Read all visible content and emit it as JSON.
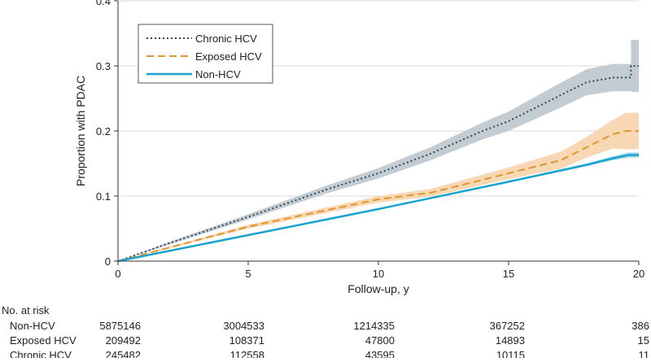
{
  "chart_data": {
    "type": "line",
    "title": "",
    "xlabel": "Follow-up, y",
    "ylabel": "Proportion with PDAC",
    "xlim": [
      0,
      20
    ],
    "ylim": [
      0,
      0.4
    ],
    "xticks": [
      "0",
      "5",
      "10",
      "15",
      "20"
    ],
    "xtick_values": [
      0,
      5,
      10,
      15,
      20
    ],
    "yticks": [
      "0",
      "0.1",
      "0.2",
      "0.3",
      "0.4"
    ],
    "ytick_values": [
      0,
      0.1,
      0.2,
      0.3,
      0.4
    ],
    "grid": "horizontal",
    "legend_placement": "top-left",
    "series": [
      {
        "name": "Chronic HCV",
        "color": "#2e4a5a",
        "band_color": "#c3ccd2",
        "style": "dotted",
        "x": [
          0,
          2,
          5,
          8,
          10,
          12,
          14,
          15,
          16,
          17,
          18,
          19,
          19.7,
          19.7,
          20
        ],
        "y": [
          0,
          0.028,
          0.068,
          0.11,
          0.135,
          0.165,
          0.2,
          0.215,
          0.235,
          0.255,
          0.275,
          0.282,
          0.282,
          0.3,
          0.3
        ],
        "ci_halfwidth": [
          0,
          0.002,
          0.004,
          0.006,
          0.008,
          0.01,
          0.013,
          0.015,
          0.017,
          0.019,
          0.02,
          0.021,
          0.021,
          0.04,
          0.04
        ]
      },
      {
        "name": "Exposed HCV",
        "color": "#e0962e",
        "band_color": "#f8d7b4",
        "style": "dashed",
        "x": [
          0,
          5,
          10,
          12,
          14,
          15,
          16,
          17,
          18,
          19,
          19.5,
          20
        ],
        "y": [
          0,
          0.053,
          0.095,
          0.105,
          0.125,
          0.135,
          0.145,
          0.155,
          0.175,
          0.195,
          0.2,
          0.2
        ],
        "ci_halfwidth": [
          0,
          0.003,
          0.005,
          0.006,
          0.008,
          0.009,
          0.011,
          0.013,
          0.016,
          0.022,
          0.028,
          0.028
        ]
      },
      {
        "name": "Non-HCV",
        "color": "#1aa3d0",
        "band_color": "#9fd6ea",
        "style": "solid",
        "x": [
          0,
          5,
          10,
          15,
          18,
          19,
          19.6,
          20
        ],
        "y": [
          0,
          0.04,
          0.08,
          0.122,
          0.148,
          0.158,
          0.163,
          0.163
        ],
        "ci_halfwidth": [
          0,
          0.0005,
          0.001,
          0.0015,
          0.002,
          0.003,
          0.004,
          0.004
        ]
      }
    ],
    "legend_order": [
      "Chronic HCV",
      "Exposed HCV",
      "Non-HCV"
    ],
    "at_risk": {
      "title": "No. at risk",
      "rows": [
        {
          "label": "Non-HCV",
          "values": [
            "5875146",
            "3004533",
            "1214335",
            "367252",
            "386"
          ]
        },
        {
          "label": "Exposed HCV",
          "values": [
            "209492",
            "108371",
            "47800",
            "14893",
            "15"
          ]
        },
        {
          "label": "Chronic HCV",
          "values": [
            "245482",
            "112558",
            "43595",
            "10115",
            "11"
          ]
        }
      ]
    }
  }
}
